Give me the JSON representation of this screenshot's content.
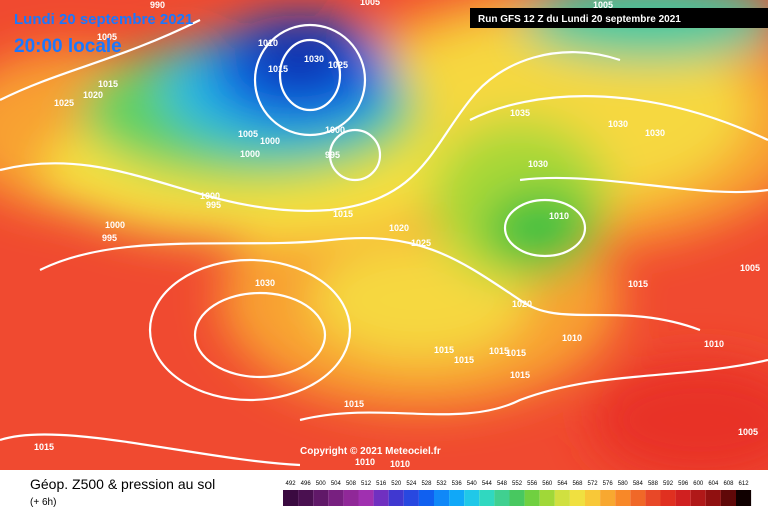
{
  "header": {
    "date": "Lundi 20 septembre 2021",
    "time": "20:00 locale",
    "run": "Run GFS 12 Z du Lundi 20 septembre 2021"
  },
  "map": {
    "copyright": "Copyright © 2021 Meteociel.fr",
    "isobar_labels": [
      "990",
      "1005",
      "1005",
      "1010",
      "1015",
      "1020",
      "1025",
      "1015",
      "1030",
      "1025",
      "1005",
      "1000",
      "1000",
      "1000",
      "995",
      "1000",
      "995",
      "1000",
      "995",
      "1015",
      "1020",
      "1025",
      "1030",
      "1035",
      "1030",
      "1030",
      "1030",
      "1010",
      "1005",
      "1005",
      "1015",
      "1020",
      "1010",
      "1010",
      "1015",
      "1015",
      "1015",
      "1015",
      "1015",
      "1015",
      "1015",
      "1005",
      "1010",
      "1010"
    ]
  },
  "legend": {
    "title": "Géop. Z500 & pression au sol",
    "subtitle": "(+ 6h)",
    "scale": [
      492,
      496,
      500,
      504,
      508,
      512,
      516,
      520,
      524,
      528,
      532,
      536,
      540,
      544,
      548,
      552,
      556,
      560,
      564,
      568,
      572,
      576,
      580,
      584,
      588,
      592,
      596,
      600,
      604,
      608,
      612
    ]
  }
}
